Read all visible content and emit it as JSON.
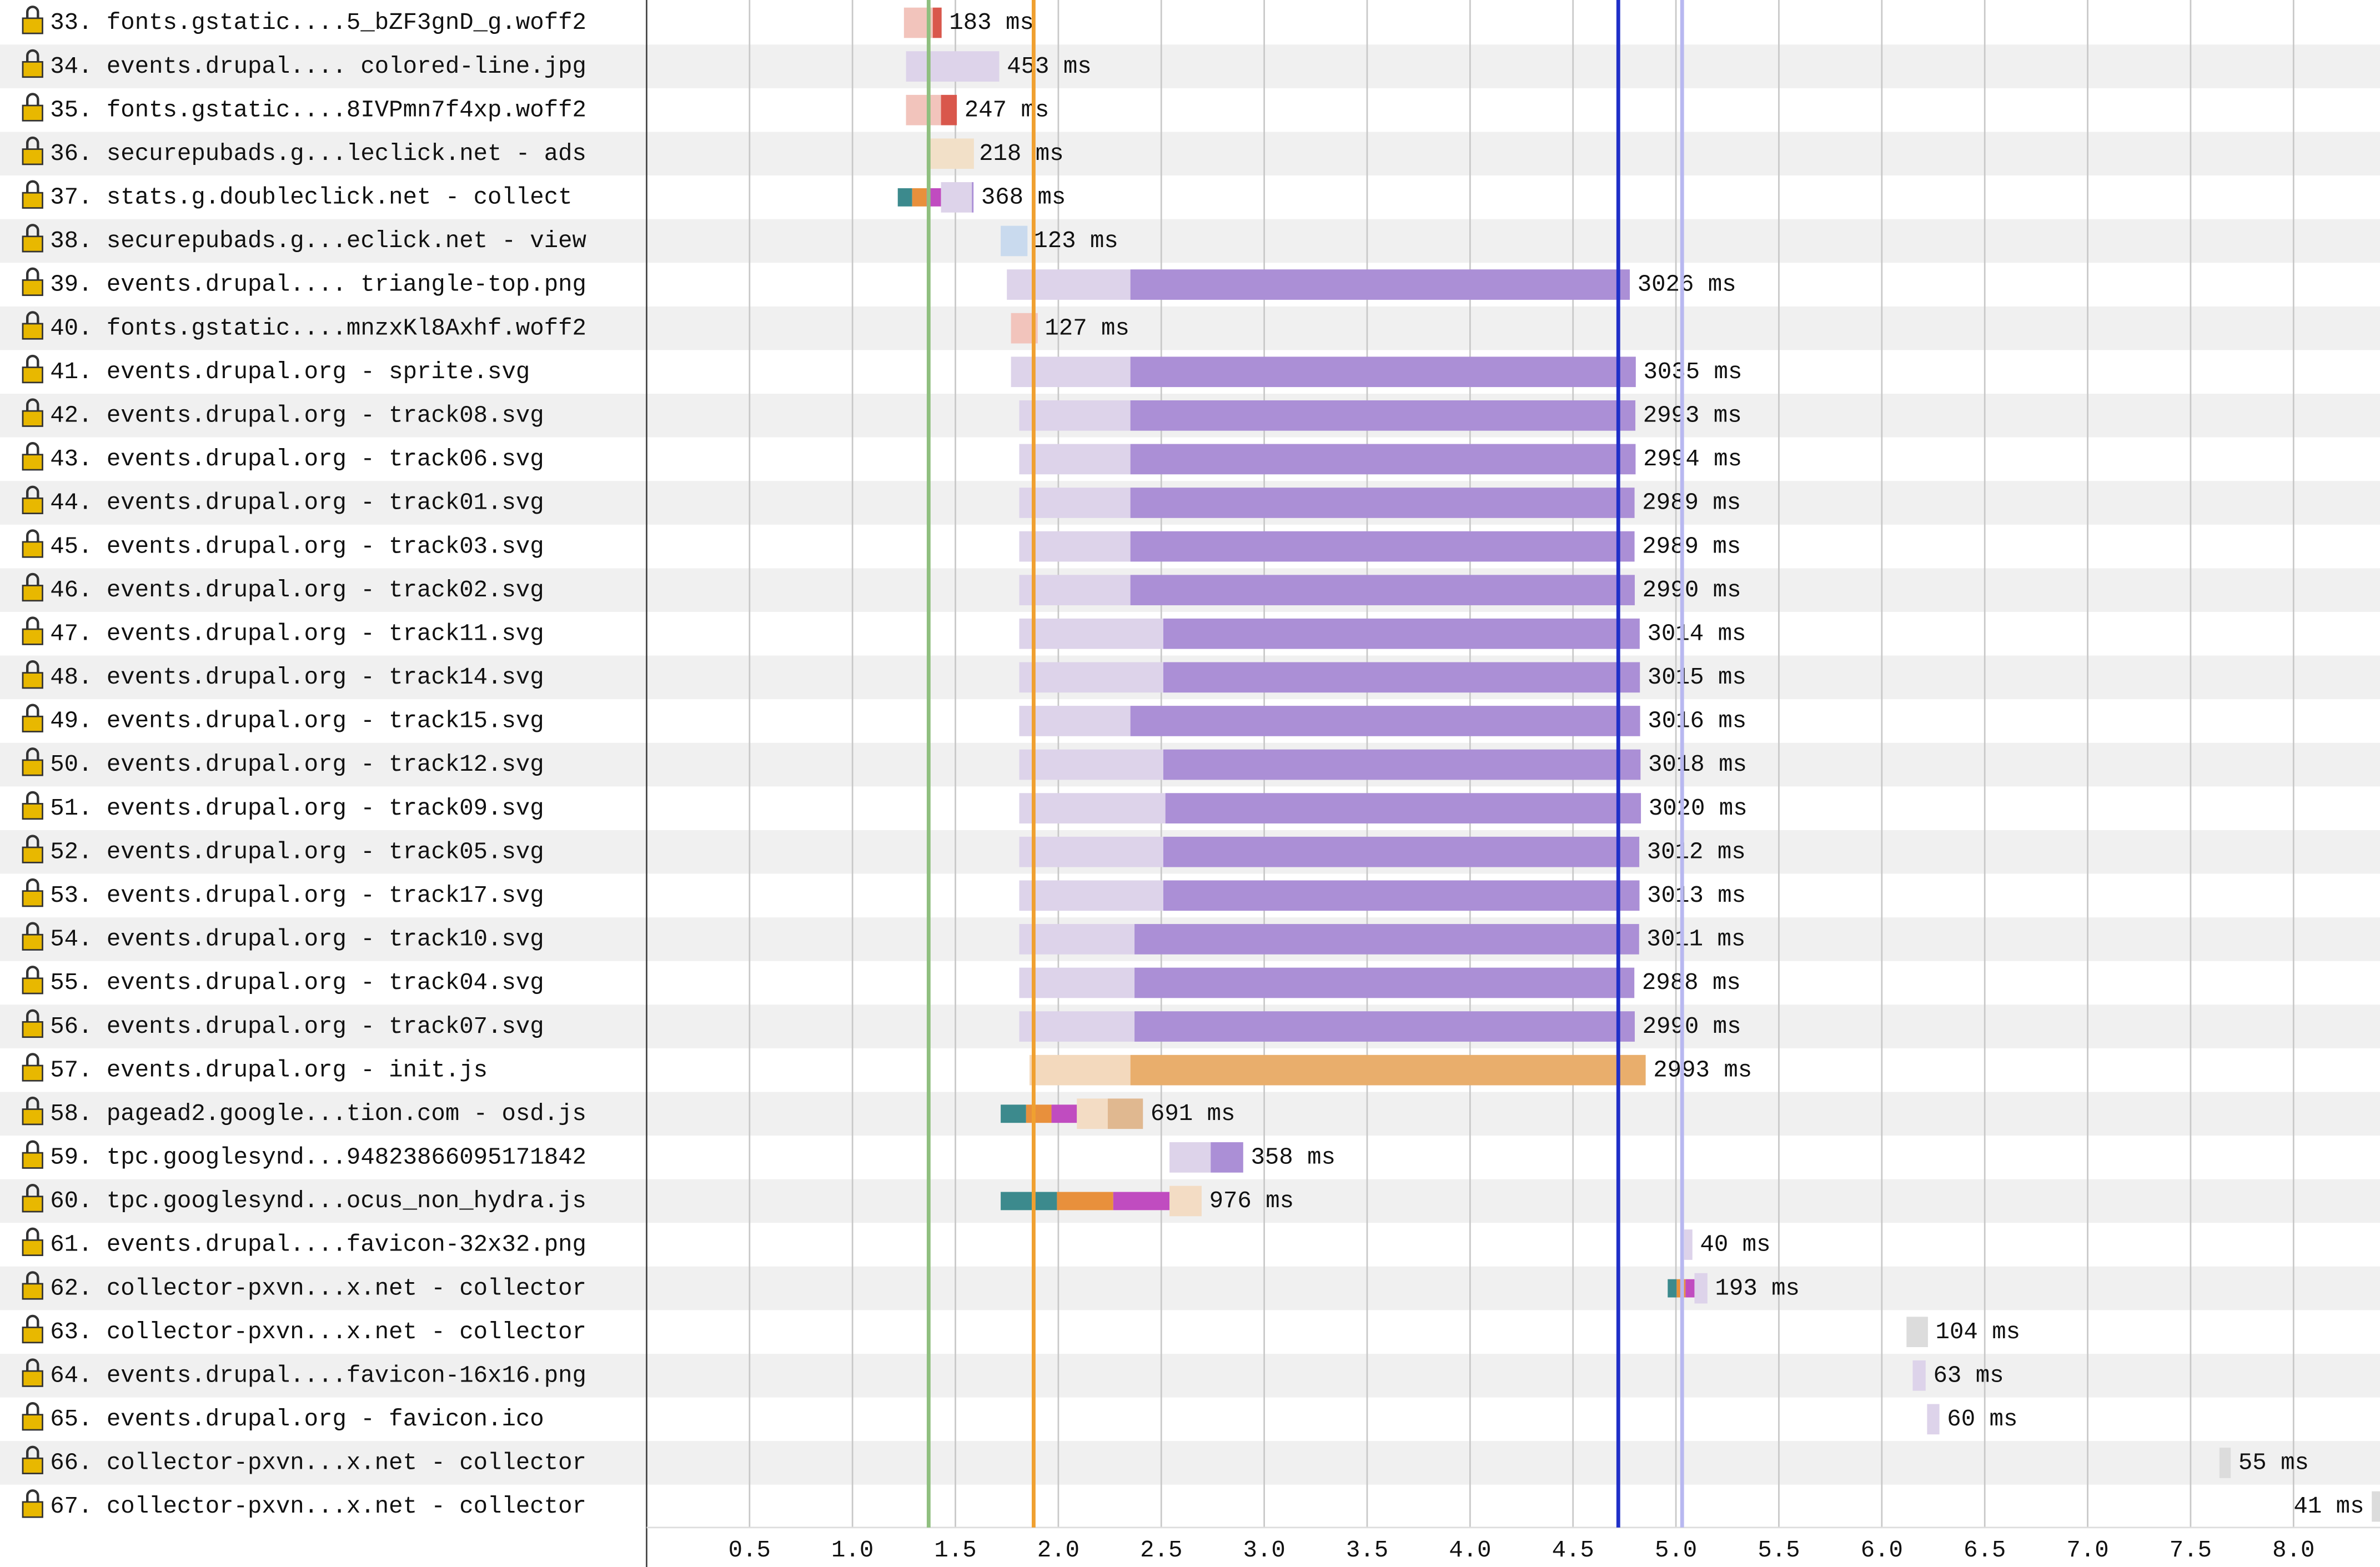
{
  "chart_data": {
    "type": "waterfall",
    "categories": [
      "33. fonts.gstatic....5_bZF3gnD_g.woff2",
      "34. events.drupal.... colored-line.jpg",
      "35. fonts.gstatic....8IVPmn7f4xp.woff2",
      "36. securepubads.g...leclick.net - ads",
      "37. stats.g.doubleclick.net - collect",
      "38. securepubads.g...eclick.net - view",
      "39. events.drupal.... triangle-top.png",
      "40. fonts.gstatic....mnzxKl8Axhf.woff2",
      "41. events.drupal.org - sprite.svg",
      "42. events.drupal.org - track08.svg",
      "43. events.drupal.org - track06.svg",
      "44. events.drupal.org - track01.svg",
      "45. events.drupal.org - track03.svg",
      "46. events.drupal.org - track02.svg",
      "47. events.drupal.org - track11.svg",
      "48. events.drupal.org - track14.svg",
      "49. events.drupal.org - track15.svg",
      "50. events.drupal.org - track12.svg",
      "51. events.drupal.org - track09.svg",
      "52. events.drupal.org - track05.svg",
      "53. events.drupal.org - track17.svg",
      "54. events.drupal.org - track10.svg",
      "55. events.drupal.org - track04.svg",
      "56. events.drupal.org - track07.svg",
      "57. events.drupal.org - init.js",
      "58. pagead2.google...tion.com - osd.js",
      "59. tpc.googlesynd...94823866095171842",
      "60. tpc.googlesynd...ocus_non_hydra.js",
      "61. events.drupal....favicon-32x32.png",
      "62. collector-pxvn...x.net - collector",
      "63. collector-pxvn...x.net - collector",
      "64. events.drupal....favicon-16x16.png",
      "65. events.drupal.org - favicon.ico",
      "66. collector-pxvn...x.net - collector",
      "67. collector-pxvn...x.net - collector"
    ],
    "values": [
      183,
      453,
      247,
      218,
      368,
      123,
      3026,
      127,
      3035,
      2993,
      2994,
      2989,
      2989,
      2990,
      3014,
      3015,
      3016,
      3018,
      3020,
      3012,
      3013,
      3011,
      2988,
      2990,
      2993,
      691,
      358,
      976,
      40,
      193,
      104,
      63,
      60,
      55,
      41
    ],
    "value_labels": [
      "183 ms",
      "453 ms",
      "247 ms",
      "218 ms",
      "368 ms",
      "123 ms",
      "3026 ms",
      "127 ms",
      "3035 ms",
      "2993 ms",
      "2994 ms",
      "2989 ms",
      "2989 ms",
      "2990 ms",
      "3014 ms",
      "3015 ms",
      "3016 ms",
      "3018 ms",
      "3020 ms",
      "3012 ms",
      "3013 ms",
      "3011 ms",
      "2988 ms",
      "2990 ms",
      "2993 ms",
      "691 ms",
      "358 ms",
      "976 ms",
      "40 ms",
      "193 ms",
      "104 ms",
      "63 ms",
      "60 ms",
      "55 ms",
      "41 ms"
    ],
    "starts": [
      1.25,
      1.26,
      1.26,
      1.36,
      1.22,
      1.72,
      1.75,
      1.77,
      1.77,
      1.81,
      1.81,
      1.81,
      1.81,
      1.81,
      1.81,
      1.81,
      1.81,
      1.81,
      1.81,
      1.81,
      1.81,
      1.81,
      1.81,
      1.81,
      1.86,
      1.72,
      2.54,
      1.72,
      5.04,
      4.96,
      6.12,
      6.15,
      6.22,
      7.64,
      8.38
    ],
    "connect_ends": [
      null,
      null,
      null,
      null,
      1.43,
      null,
      null,
      null,
      null,
      null,
      null,
      null,
      null,
      null,
      null,
      null,
      null,
      null,
      null,
      null,
      null,
      null,
      null,
      null,
      null,
      2.09,
      null,
      2.54,
      null,
      5.09,
      null,
      null,
      null,
      null,
      null
    ],
    "download_starts": [
      1.39,
      null,
      1.43,
      1.59,
      1.58,
      1.85,
      2.35,
      1.9,
      2.35,
      2.35,
      2.35,
      2.35,
      2.35,
      2.35,
      2.51,
      2.51,
      2.35,
      2.51,
      2.52,
      2.51,
      2.51,
      2.37,
      2.37,
      2.37,
      2.35,
      2.24,
      2.74,
      null,
      null,
      null,
      null,
      null,
      null,
      null,
      null
    ],
    "colors": [
      [
        "#f2c4bc",
        "#d9574c"
      ],
      [
        "#ddd3ea",
        "#ab8fd6"
      ],
      [
        "#f2c4bc",
        "#d9574c"
      ],
      [
        "#f2e0c8",
        "#e8a0e8"
      ],
      [
        "#ddd3ea",
        "#ab8fd6"
      ],
      [
        "#c9daee",
        "#a6bee0"
      ],
      [
        "#ddd3ea",
        "#ab8fd6"
      ],
      [
        "#f2c4bc",
        "#d9574c"
      ],
      [
        "#ddd3ea",
        "#ab8fd6"
      ],
      [
        "#ddd3ea",
        "#ab8fd6"
      ],
      [
        "#ddd3ea",
        "#ab8fd6"
      ],
      [
        "#ddd3ea",
        "#ab8fd6"
      ],
      [
        "#ddd3ea",
        "#ab8fd6"
      ],
      [
        "#ddd3ea",
        "#ab8fd6"
      ],
      [
        "#ddd3ea",
        "#ab8fd6"
      ],
      [
        "#ddd3ea",
        "#ab8fd6"
      ],
      [
        "#ddd3ea",
        "#ab8fd6"
      ],
      [
        "#ddd3ea",
        "#ab8fd6"
      ],
      [
        "#ddd3ea",
        "#ab8fd6"
      ],
      [
        "#ddd3ea",
        "#ab8fd6"
      ],
      [
        "#ddd3ea",
        "#ab8fd6"
      ],
      [
        "#ddd3ea",
        "#ab8fd6"
      ],
      [
        "#ddd3ea",
        "#ab8fd6"
      ],
      [
        "#ddd3ea",
        "#ab8fd6"
      ],
      [
        "#f3d9bd",
        "#e9ae6c"
      ],
      [
        "#f3dcc4",
        "#e0b890"
      ],
      [
        "#ddd3ea",
        "#ab8fd6"
      ],
      [
        "#f3dcc4",
        "#e0b890"
      ],
      [
        "#ddd3ea",
        "#ab8fd6"
      ],
      [
        "#ddd3ea",
        "#ab8fd6"
      ],
      [
        "#dcdcdc",
        "#bdbdbd"
      ],
      [
        "#ddd3ea",
        "#ab8fd6"
      ],
      [
        "#ddd3ea",
        "#ab8fd6"
      ],
      [
        "#dcdcdc",
        "#bdbdbd"
      ],
      [
        "#dcdcdc",
        "#bdbdbd"
      ]
    ],
    "connect_colors": [
      "#3c8a8d",
      "#e8903c",
      "#c04cc0"
    ],
    "event_lines": [
      {
        "value": 1.37,
        "color": "#8fbf7f"
      },
      {
        "value": 1.88,
        "color": "#f0a030"
      },
      {
        "value": 4.72,
        "color": "#2030c8"
      },
      {
        "value": 5.03,
        "color": "#b8b8f0"
      }
    ],
    "xlim": [
      0,
      8.42
    ],
    "xticks": [
      0.5,
      {
        "value": 1,
        "label": "1.0"
      },
      1.5,
      {
        "value": 2,
        "label": "2.0"
      },
      2.5,
      {
        "value": 3,
        "label": "3.0"
      },
      3.5,
      {
        "value": 4,
        "label": "4.0"
      },
      4.5,
      {
        "value": 5,
        "label": "5.0"
      },
      5.5,
      {
        "value": 6,
        "label": "6.0"
      },
      6.5,
      {
        "value": 7,
        "label": "7.0"
      },
      7.5,
      {
        "value": 8,
        "label": "8.0"
      }
    ],
    "grid": true
  }
}
